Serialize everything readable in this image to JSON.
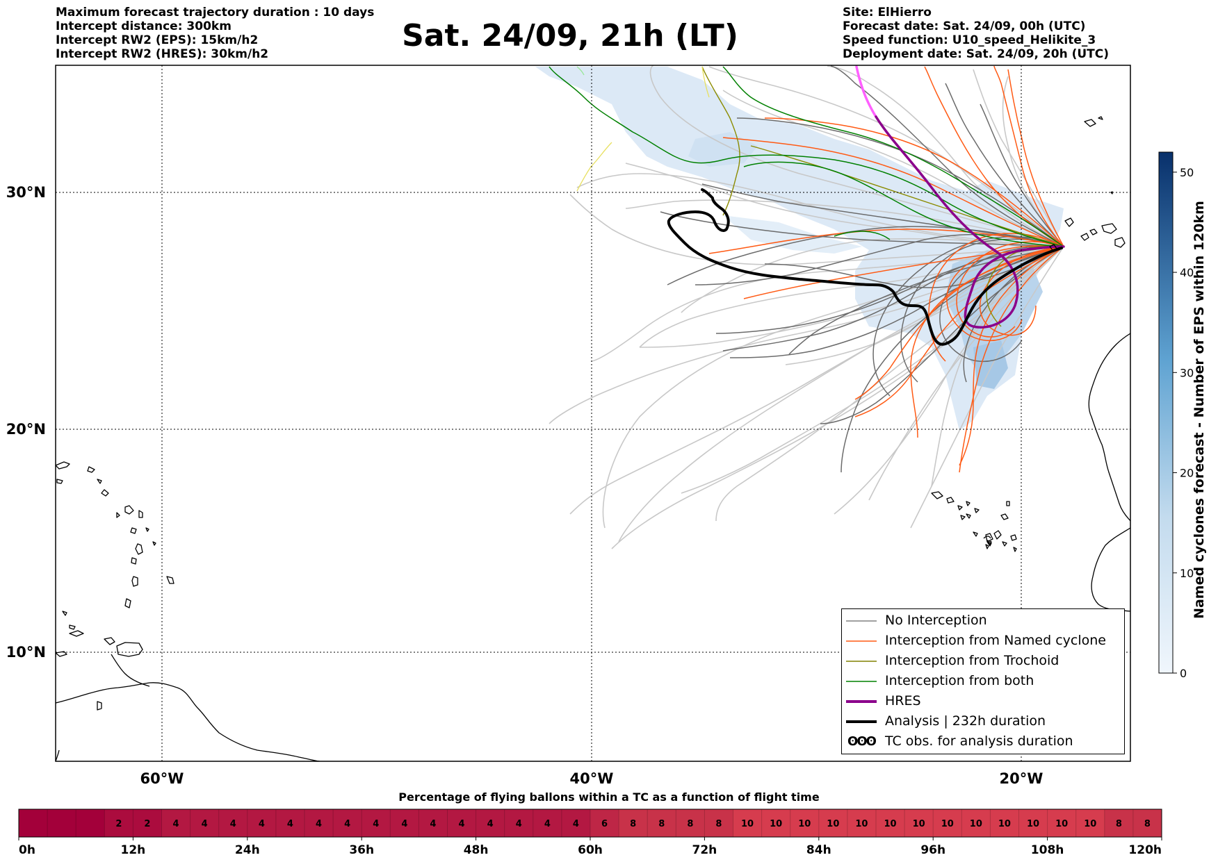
{
  "header_left": [
    "Maximum forecast trajectory duration : 10 days",
    "Intercept distance: 300km",
    "Intercept RW2 (EPS):  15km/h2",
    "Intercept RW2 (HRES): 30km/h2"
  ],
  "header_right": [
    "Site: ElHierro",
    "Forecast date: Sat. 24/09, 00h (UTC)",
    "Speed function: U10_speed_Helikite_3",
    "Deployment date: Sat. 24/09, 20h (UTC)"
  ],
  "title": "Sat. 24/09, 21h (LT)",
  "map": {
    "lon_labels": [
      "60°W",
      "40°W",
      "20°W"
    ],
    "lat_labels": [
      "30°N",
      "20°N",
      "10°N"
    ],
    "lon_values": [
      -60,
      -40,
      -20
    ],
    "lat_values": [
      30,
      20,
      10
    ],
    "extent": {
      "lon_min": -65,
      "lon_max": -15,
      "lat_min": 5.4,
      "lat_max": 34.8
    }
  },
  "legend": {
    "items": [
      {
        "label": "No Interception",
        "color": "#808080",
        "kind": "line-thin"
      },
      {
        "label": "Interception from Named cyclone",
        "color": "#ff5a14",
        "kind": "line-thin"
      },
      {
        "label": "Interception from Trochoid",
        "color": "#808000",
        "kind": "line-thin"
      },
      {
        "label": "Interception from both",
        "color": "#008000",
        "kind": "line-thin"
      },
      {
        "label": "HRES",
        "color": "#8b008b",
        "kind": "line-thick"
      },
      {
        "label": "Analysis | 232h duration",
        "color": "#000000",
        "kind": "line-thick"
      },
      {
        "label": "TC obs. for analysis duration",
        "color": "#000000",
        "kind": "tc-symbol",
        "symbol": "ʘʘʘ"
      }
    ]
  },
  "colorbar": {
    "label": "Named cyclones forecast - Number of EPS within 120km",
    "ticks": [
      "0",
      "10",
      "20",
      "30",
      "40",
      "50"
    ],
    "tick_values": [
      0,
      10,
      20,
      30,
      40,
      50
    ],
    "max": 52,
    "color_low": "#f0f6fc",
    "color_high": "#08306b"
  },
  "bottom": {
    "title": "Percentage of flying ballons within a TC as a function of flight time",
    "cell_values": [
      "",
      "",
      "",
      "2",
      "2",
      "4",
      "4",
      "4",
      "4",
      "4",
      "4",
      "4",
      "4",
      "4",
      "4",
      "4",
      "4",
      "4",
      "4",
      "4",
      "6",
      "8",
      "8",
      "8",
      "8",
      "10",
      "10",
      "10",
      "10",
      "10",
      "10",
      "10",
      "10",
      "10",
      "10",
      "10",
      "10",
      "10",
      "8",
      "8"
    ],
    "axis_labels": [
      "0h",
      "12h",
      "24h",
      "36h",
      "48h",
      "60h",
      "72h",
      "84h",
      "96h",
      "108h",
      "120h"
    ],
    "max_hours": 120
  }
}
